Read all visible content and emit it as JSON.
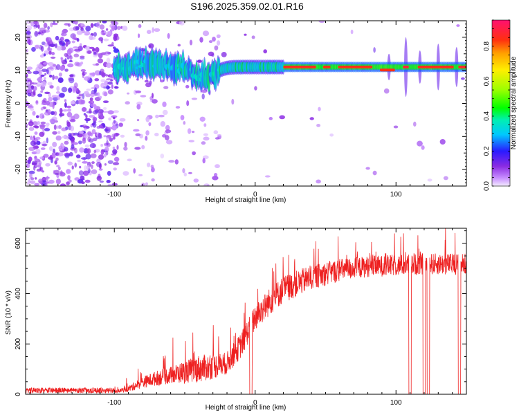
{
  "title": "S196.2025.359.02.01.R16",
  "chart_data": [
    {
      "type": "heatmap",
      "name": "spectrogram",
      "xlabel": "Height of straight line (km)",
      "ylabel": "Frequency (Hz)",
      "xlim": [
        -163,
        150
      ],
      "ylim": [
        -25,
        25
      ],
      "xticks": [
        -100,
        0,
        100
      ],
      "xtick_labels": [
        "-100",
        "0",
        "100"
      ],
      "yticks": [
        20,
        10,
        0,
        -10,
        -20
      ],
      "ytick_labels": [
        "20",
        "10",
        "0",
        "-10",
        "-20"
      ],
      "colorbar": {
        "label": "Normalized spectral amplitude",
        "range": [
          0,
          0.95
        ],
        "ticks": [
          0.0,
          0.2,
          0.4,
          0.6,
          0.8
        ],
        "tick_labels": [
          "0.0",
          "0.2",
          "0.4",
          "0.6",
          "0.8"
        ]
      },
      "features": {
        "noise_region_x": [
          -163,
          -100
        ],
        "tone_frequency_hz": 11,
        "dip": {
          "x": -37,
          "frequency_hz": 7
        },
        "strong_tone_x": [
          20,
          150
        ]
      }
    },
    {
      "type": "line",
      "name": "snr",
      "xlabel": "Height of straight line (km)",
      "ylabel": "SNR (10 * v/v)",
      "xlim": [
        -163,
        150
      ],
      "ylim": [
        0,
        660
      ],
      "xticks": [
        -100,
        0,
        100
      ],
      "xtick_labels": [
        "-100",
        "0",
        "100"
      ],
      "yticks": [
        0,
        200,
        400,
        600
      ],
      "ytick_labels": [
        "0",
        "200",
        "400",
        "600"
      ],
      "color": "#ee2020",
      "envelope": {
        "x": [
          -163,
          -100,
          -90,
          -80,
          -70,
          -60,
          -50,
          -40,
          -30,
          -20,
          -10,
          0,
          10,
          20,
          40,
          60,
          80,
          100,
          120,
          140,
          150
        ],
        "baseline": [
          8,
          8,
          18,
          40,
          55,
          65,
          75,
          85,
          95,
          110,
          180,
          290,
          350,
          400,
          450,
          480,
          495,
          500,
          505,
          505,
          505
        ],
        "spread": [
          10,
          10,
          25,
          45,
          60,
          70,
          90,
          110,
          100,
          90,
          100,
          110,
          110,
          110,
          100,
          90,
          85,
          85,
          85,
          85,
          85
        ]
      },
      "dropouts_x": [
        -3,
        110,
        120,
        123,
        145
      ]
    }
  ]
}
